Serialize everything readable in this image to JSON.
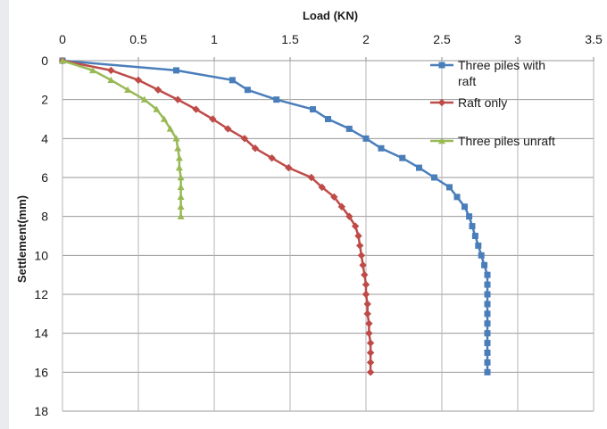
{
  "chart_data": {
    "type": "line",
    "xlabel": "Load (KN)",
    "ylabel": "Settlement(mm)",
    "xlim": [
      0,
      3.5
    ],
    "ylim": [
      0,
      18
    ],
    "x_ticks": [
      "0",
      "0.5",
      "1",
      "1.5",
      "2",
      "2.5",
      "3",
      "3.5"
    ],
    "y_ticks": [
      "0",
      "2",
      "4",
      "6",
      "8",
      "10",
      "12",
      "14",
      "16",
      "18"
    ],
    "y_inverted": true,
    "x_axis_position": "top",
    "grid": true,
    "legend_position": "right",
    "series": [
      {
        "name": "Three piles with raft",
        "color": "#4a7ebb",
        "marker": "square",
        "points": [
          [
            0,
            0
          ],
          [
            0.75,
            0.5
          ],
          [
            1.12,
            1.0
          ],
          [
            1.22,
            1.5
          ],
          [
            1.41,
            2.0
          ],
          [
            1.65,
            2.5
          ],
          [
            1.75,
            3.0
          ],
          [
            1.89,
            3.5
          ],
          [
            2.0,
            4.0
          ],
          [
            2.1,
            4.5
          ],
          [
            2.24,
            5.0
          ],
          [
            2.35,
            5.5
          ],
          [
            2.45,
            6.0
          ],
          [
            2.55,
            6.5
          ],
          [
            2.6,
            7.0
          ],
          [
            2.65,
            7.5
          ],
          [
            2.68,
            8.0
          ],
          [
            2.7,
            8.5
          ],
          [
            2.72,
            9.0
          ],
          [
            2.74,
            9.5
          ],
          [
            2.76,
            10.0
          ],
          [
            2.78,
            10.5
          ],
          [
            2.8,
            11.0
          ],
          [
            2.8,
            11.5
          ],
          [
            2.8,
            12.0
          ],
          [
            2.8,
            12.5
          ],
          [
            2.8,
            13.0
          ],
          [
            2.8,
            13.5
          ],
          [
            2.8,
            14.0
          ],
          [
            2.8,
            14.5
          ],
          [
            2.8,
            15.0
          ],
          [
            2.8,
            15.5
          ],
          [
            2.8,
            16.0
          ]
        ]
      },
      {
        "name": "Raft only",
        "color": "#be4b48",
        "marker": "diamond",
        "points": [
          [
            0,
            0
          ],
          [
            0.32,
            0.5
          ],
          [
            0.5,
            1.0
          ],
          [
            0.63,
            1.5
          ],
          [
            0.76,
            2.0
          ],
          [
            0.88,
            2.5
          ],
          [
            0.99,
            3.0
          ],
          [
            1.09,
            3.5
          ],
          [
            1.2,
            4.0
          ],
          [
            1.27,
            4.5
          ],
          [
            1.38,
            5.0
          ],
          [
            1.49,
            5.5
          ],
          [
            1.64,
            6.0
          ],
          [
            1.71,
            6.5
          ],
          [
            1.79,
            7.0
          ],
          [
            1.84,
            7.5
          ],
          [
            1.89,
            8.0
          ],
          [
            1.93,
            8.5
          ],
          [
            1.95,
            9.0
          ],
          [
            1.96,
            9.5
          ],
          [
            1.97,
            10.0
          ],
          [
            1.98,
            10.5
          ],
          [
            1.99,
            11.0
          ],
          [
            2.0,
            11.5
          ],
          [
            2.0,
            12.0
          ],
          [
            2.01,
            12.5
          ],
          [
            2.01,
            13.0
          ],
          [
            2.02,
            13.5
          ],
          [
            2.02,
            14.0
          ],
          [
            2.03,
            14.5
          ],
          [
            2.03,
            15.0
          ],
          [
            2.03,
            15.5
          ],
          [
            2.03,
            16.0
          ]
        ]
      },
      {
        "name": "Three piles unraft",
        "color": "#98b954",
        "marker": "triangle",
        "points": [
          [
            0,
            0
          ],
          [
            0.2,
            0.5
          ],
          [
            0.32,
            1.0
          ],
          [
            0.43,
            1.5
          ],
          [
            0.54,
            2.0
          ],
          [
            0.62,
            2.5
          ],
          [
            0.67,
            3.0
          ],
          [
            0.71,
            3.5
          ],
          [
            0.75,
            4.0
          ],
          [
            0.76,
            4.5
          ],
          [
            0.77,
            5.0
          ],
          [
            0.77,
            5.5
          ],
          [
            0.78,
            6.0
          ],
          [
            0.78,
            6.5
          ],
          [
            0.78,
            7.0
          ],
          [
            0.78,
            7.5
          ],
          [
            0.78,
            8.0
          ]
        ]
      }
    ]
  }
}
